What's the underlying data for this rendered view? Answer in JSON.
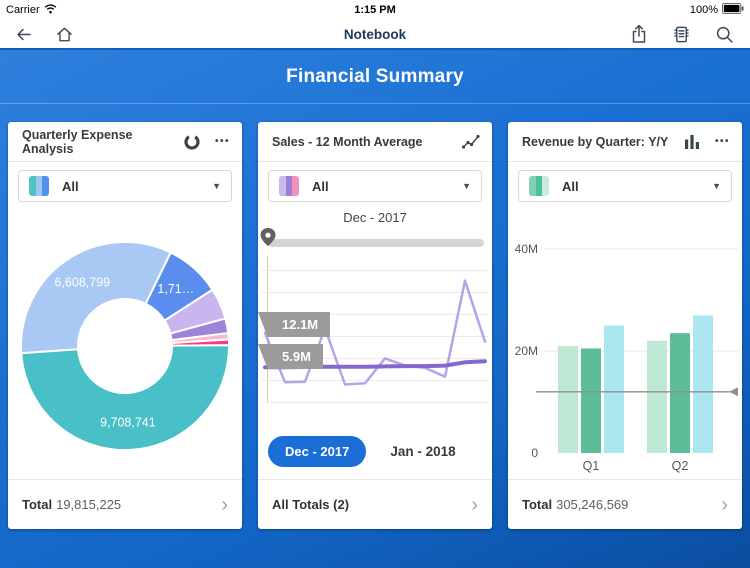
{
  "status_bar": {
    "carrier": "Carrier",
    "time": "1:15 PM",
    "battery_percent": "100%"
  },
  "nav_bar": {
    "title": "Notebook"
  },
  "page": {
    "title": "Financial Summary"
  },
  "icons": {
    "more": "•••",
    "caret": "▼",
    "chevron": "›"
  },
  "colors": {
    "header_blue": "#1b71d3",
    "pill_blue": "#1b6ed6"
  },
  "cards": [
    {
      "title": "Quarterly Expense Analysis",
      "filter_label": "All",
      "swatch": [
        "#4ec4c6",
        "#9ec7f0",
        "#4f93ee"
      ],
      "footer_label": "Total",
      "footer_value": "19,815,225"
    },
    {
      "title": "Sales - 12 Month Average",
      "filter_label": "All",
      "swatch": [
        "#cbb9ea",
        "#9b7fd4",
        "#f191bd"
      ],
      "slider_label": "Dec - 2017",
      "buttons": [
        "Dec - 2017",
        "Jan - 2018"
      ],
      "footer_label": "All Totals (2)",
      "footer_value": ""
    },
    {
      "title": "Revenue by Quarter: Y/Y",
      "filter_label": "All",
      "swatch": [
        "#7fd0b4",
        "#4fbf9f",
        "#c9ecdf"
      ],
      "footer_label": "Total",
      "footer_value": "305,246,569"
    }
  ],
  "chart_data": [
    {
      "type": "pie",
      "donut": true,
      "title": "Quarterly Expense Analysis",
      "total": 19815225,
      "total_display": "19,815,225",
      "start_angle_deg": 266,
      "segments": [
        {
          "value": 6608799,
          "label": "6,608,799",
          "color": "#a9c8f3"
        },
        {
          "value": 1716000,
          "label": "1,71…",
          "color": "#5b8def"
        },
        {
          "value": 960000,
          "color": "#c9b6ee"
        },
        {
          "value": 450000,
          "color": "#9d84d9"
        },
        {
          "value": 195000,
          "color": "#f6b8d2"
        },
        {
          "value": 176685,
          "color": "#f2407e"
        },
        {
          "value": 9708741,
          "label": "9,708,741",
          "color": "#49bfc7"
        }
      ]
    },
    {
      "type": "line",
      "title": "Sales - 12 Month Average",
      "selected_x": "Dec - 2017",
      "callouts": [
        "12.1M",
        "5.9M"
      ],
      "x_count": 12,
      "unit": "M",
      "grid": true,
      "series": [
        {
          "name": "monthly-sales",
          "color": "#b7a3e8",
          "width": 2.5,
          "values": [
            12.1,
            3.2,
            3.3,
            12.9,
            2.8,
            3.0,
            7.5,
            6.2,
            5.8,
            4.2,
            21.5,
            10.5
          ]
        },
        {
          "name": "12-month-average",
          "color": "#8468cf",
          "width": 4,
          "values": [
            5.9,
            5.9,
            5.95,
            6.0,
            6.0,
            6.0,
            6.05,
            6.1,
            6.1,
            6.2,
            6.8,
            7.0
          ]
        }
      ]
    },
    {
      "type": "bar",
      "title": "Revenue by Quarter: Y/Y",
      "categories": [
        "Q1",
        "Q2"
      ],
      "series": [
        {
          "name": "series-1",
          "color": "#bde8d3",
          "values": [
            21,
            22
          ]
        },
        {
          "name": "series-2",
          "color": "#5dbd99",
          "values": [
            20.5,
            23.5
          ]
        },
        {
          "name": "series-3",
          "color": "#abe7f0",
          "values": [
            25,
            27
          ]
        }
      ],
      "unit": "M",
      "ylim": [
        0,
        43
      ],
      "yticks": [
        {
          "label": "40M",
          "value": 40
        },
        {
          "label": "20M",
          "value": 20
        },
        {
          "label": "0",
          "value": 0
        }
      ],
      "reference_line": 12,
      "grid": true,
      "legend": false
    }
  ]
}
